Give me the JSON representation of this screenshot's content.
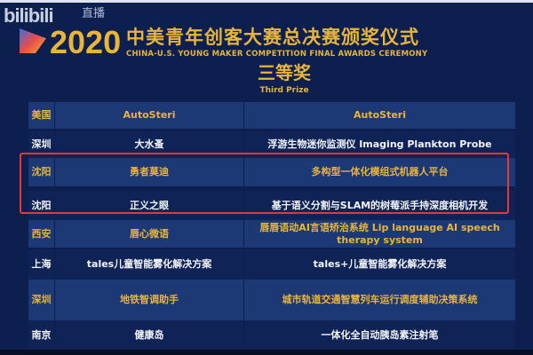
{
  "watermark": {
    "logo": "bilibili",
    "live": "直播"
  },
  "header": {
    "year": "2020",
    "title_cn": "中美青年创客大赛总决赛颁奖仪式",
    "title_en": "CHINA-U.S. YOUNG MAKER COMPETITION FINAL AWARDS CEREMONY"
  },
  "prize": {
    "cn": "三等奖",
    "en": "Third Prize"
  },
  "colors": {
    "background": "#0c1f4e",
    "gold": "#e8b53a",
    "highlight": "#e53935"
  },
  "rows": [
    {
      "city": "美国",
      "team": "AutoSteri",
      "project": "AutoSteri",
      "style": "gold"
    },
    {
      "city": "深圳",
      "team": "大水蚤",
      "project": "浮游生物迷你监测仪 Imaging Plankton Probe",
      "style": "white"
    },
    {
      "city": "沈阳",
      "team": "勇者莫迪",
      "project": "多构型一体化模组式机器人平台",
      "style": "gold"
    },
    {
      "city": "沈阳",
      "team": "正义之眼",
      "project": "基于语义分割与SLAM的树莓派手持深度相机开发",
      "style": "white"
    },
    {
      "city": "西安",
      "team": "唇心微语",
      "project": "唇唇语动AI言语矫治系统  Lip language AI speech therapy system",
      "style": "gold"
    },
    {
      "city": "上海",
      "team": "tales儿童智能雾化解决方案",
      "project": "tales+儿童智能雾化解决方案",
      "style": "white"
    },
    {
      "city": "深圳",
      "team": "地铁智调助手",
      "project": "城市轨道交通智慧列车运行调度辅助决策系统",
      "style": "gold"
    },
    {
      "city": "南京",
      "team": "健康岛",
      "project": "一体化全自动胰岛素注射笔",
      "style": "white"
    }
  ]
}
